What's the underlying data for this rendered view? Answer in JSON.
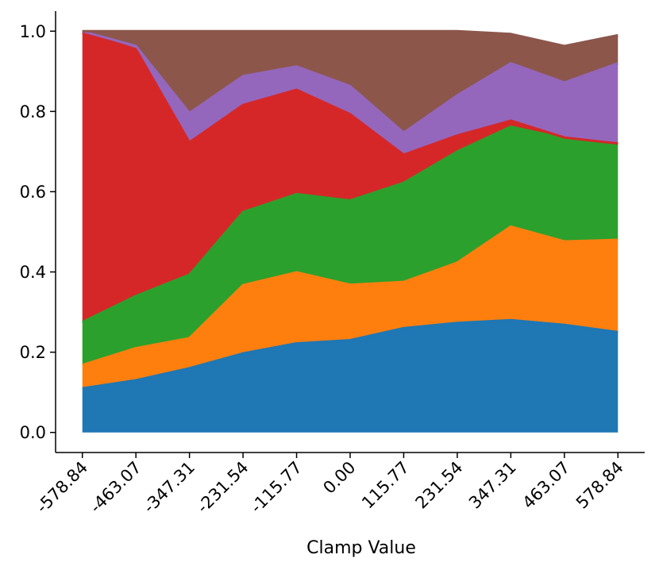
{
  "chart_data": {
    "type": "area",
    "stacked": true,
    "xlabel": "Clamp Value",
    "ylabel": "",
    "title": "",
    "x": [
      -578.84,
      -463.07,
      -347.31,
      -231.54,
      -115.77,
      0.0,
      115.77,
      231.54,
      347.31,
      463.07,
      578.84
    ],
    "x_tick_labels": [
      "-578.84",
      "-463.07",
      "-347.31",
      "-231.54",
      "-115.77",
      "0.00",
      "115.77",
      "231.54",
      "347.31",
      "463.07",
      "578.84"
    ],
    "y_ticks": [
      "0.0",
      "0.2",
      "0.4",
      "0.6",
      "0.8",
      "1.0"
    ],
    "y_tick_values": [
      0.0,
      0.2,
      0.4,
      0.6,
      0.8,
      1.0
    ],
    "ylim": [
      -0.05,
      1.05
    ],
    "xlim": [
      -636.72,
      636.72
    ],
    "grid": false,
    "series": [
      {
        "color": "#1f77b4",
        "values": [
          0.11,
          0.13,
          0.16,
          0.197,
          0.222,
          0.23,
          0.26,
          0.273,
          0.28,
          0.268,
          0.25
        ]
      },
      {
        "color": "#ff7f0e",
        "values": [
          0.058,
          0.08,
          0.075,
          0.17,
          0.177,
          0.138,
          0.115,
          0.15,
          0.233,
          0.208,
          0.23
        ]
      },
      {
        "color": "#2ca02c",
        "values": [
          0.107,
          0.13,
          0.158,
          0.182,
          0.195,
          0.21,
          0.247,
          0.277,
          0.249,
          0.257,
          0.238
        ]
      },
      {
        "color": "#d62728",
        "values": [
          0.722,
          0.615,
          0.33,
          0.267,
          0.26,
          0.215,
          0.07,
          0.04,
          0.015,
          0.002,
          0.002
        ]
      },
      {
        "color": "#9467bd",
        "values": [
          0.003,
          0.008,
          0.073,
          0.072,
          0.058,
          0.07,
          0.055,
          0.1,
          0.143,
          0.137,
          0.2
        ]
      },
      {
        "color": "#8c564b",
        "values": [
          0.0,
          0.037,
          0.204,
          0.112,
          0.088,
          0.137,
          0.253,
          0.16,
          0.073,
          0.091,
          0.07
        ]
      }
    ]
  }
}
